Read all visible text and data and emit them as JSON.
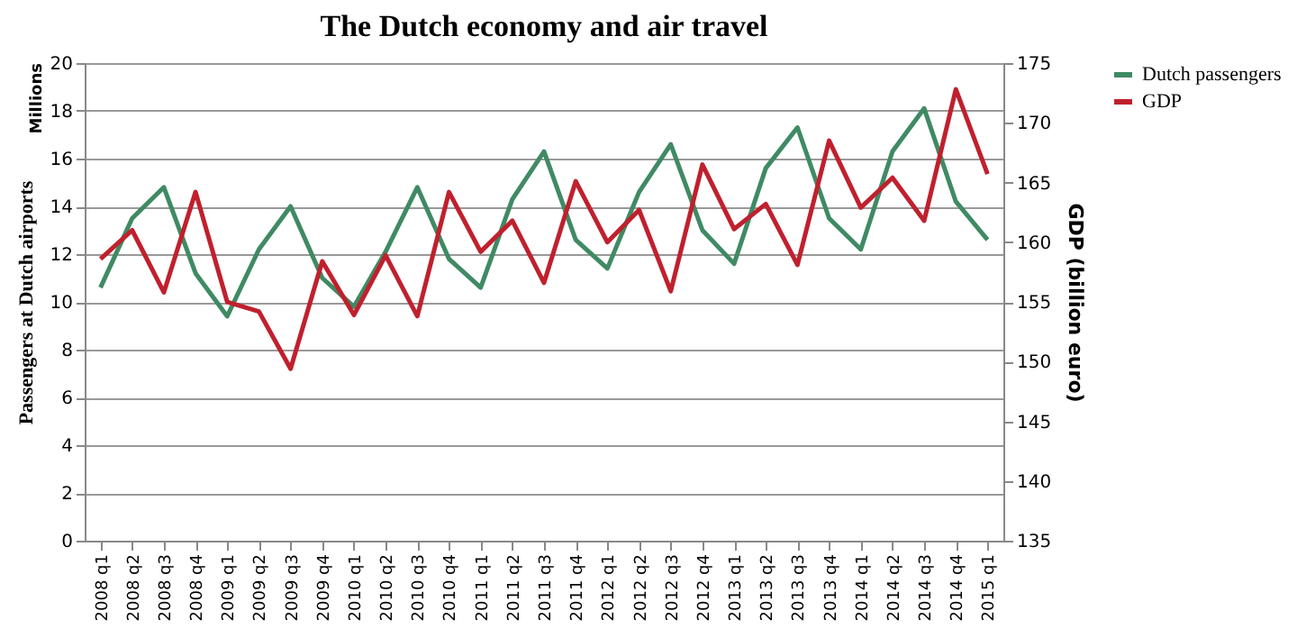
{
  "chart_data": {
    "type": "line",
    "title": "The Dutch economy and air travel",
    "ylabel": "Passengers at Dutch airports",
    "y2label": "GDP (billion euro)",
    "annotations": [
      "Millions"
    ],
    "categories": [
      "2008 q1",
      "2008 q2",
      "2008 q3",
      "2008 q4",
      "2009 q1",
      "2009 q2",
      "2009 q3",
      "2009 q4",
      "2010 q1",
      "2010 q2",
      "2010 q3",
      "2010 q4",
      "2011 q1",
      "2011 q2",
      "2011 q3",
      "2011 q4",
      "2012 q1",
      "2012 q2",
      "2012 q3",
      "2012 q4",
      "2013 q1",
      "2013 q2",
      "2013 q3",
      "2013 q4",
      "2014 q1",
      "2014 q2",
      "2014 q3",
      "2014 q4",
      "2015 q1"
    ],
    "series": [
      {
        "name": "Dutch passengers",
        "color": "#3f8a64",
        "values": [
          10.6,
          13.5,
          14.8,
          11.2,
          9.4,
          12.2,
          14.0,
          11.0,
          9.8,
          12.1,
          14.8,
          11.8,
          10.6,
          14.3,
          16.3,
          12.6,
          11.4,
          14.6,
          16.6,
          13.0,
          11.6,
          15.6,
          17.3,
          13.5,
          12.2,
          16.3,
          18.1,
          14.2,
          12.6
        ]
      },
      {
        "name": "GDP",
        "color": "#c0202e",
        "axis": "y2",
        "values": [
          158.6,
          161.0,
          155.8,
          164.2,
          155.0,
          154.2,
          149.4,
          158.4,
          153.9,
          158.9,
          153.8,
          164.2,
          159.2,
          161.8,
          156.6,
          165.1,
          160.0,
          162.7,
          155.9,
          166.5,
          161.1,
          163.2,
          158.1,
          168.5,
          162.9,
          165.4,
          161.8,
          172.8,
          165.7
        ]
      }
    ],
    "ylim": [
      0,
      20
    ],
    "yticks": [
      0,
      2,
      4,
      6,
      8,
      10,
      12,
      14,
      16,
      18,
      20
    ],
    "y2lim": [
      135,
      175
    ],
    "y2ticks": [
      135,
      140,
      145,
      150,
      155,
      160,
      165,
      170,
      175
    ],
    "grid": "y",
    "legend": "right",
    "marker": "none",
    "line_style": "solid"
  }
}
